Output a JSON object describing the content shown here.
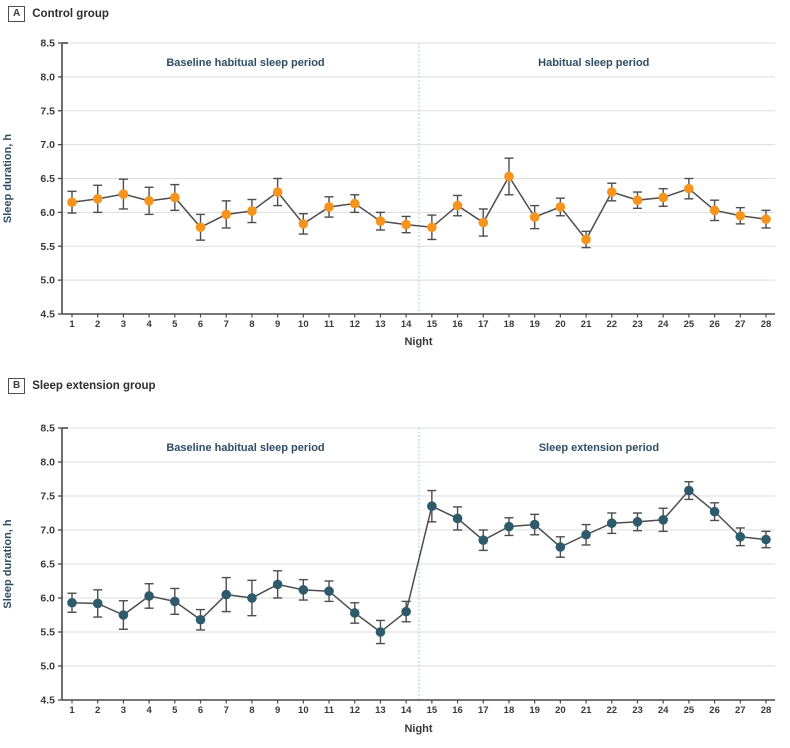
{
  "figure": {
    "xlabel": "Night",
    "ylabel": "Sleep duration, h"
  },
  "colors": {
    "axis": "#4a4a4a",
    "grid": "#dedede",
    "line": "#4d4d4d",
    "error_bar": "#4d4d4d",
    "tick_label": "#3a3a3a",
    "annotation": "#2e4e66",
    "divider": "#a9dcf0",
    "control_marker": "#f7941d",
    "extension_marker": "#2e5b6b"
  },
  "chart_data": [
    {
      "type": "line",
      "panel_label": "A",
      "title": "Control group",
      "annotation_left": "Baseline habitual sleep period",
      "annotation_right": "Habitual sleep period",
      "xlabel": "Night",
      "ylabel": "Sleep duration, h",
      "ylim": [
        4.5,
        8.5
      ],
      "ytick_step": 0.5,
      "grid": true,
      "divider_x": 14.5,
      "x": [
        1,
        2,
        3,
        4,
        5,
        6,
        7,
        8,
        9,
        10,
        11,
        12,
        13,
        14,
        15,
        16,
        17,
        18,
        19,
        20,
        21,
        22,
        23,
        24,
        25,
        26,
        27,
        28
      ],
      "series": [
        {
          "name": "Control group",
          "marker_color": "#f7941d",
          "values": [
            6.15,
            6.2,
            6.27,
            6.17,
            6.22,
            5.78,
            5.97,
            6.02,
            6.3,
            5.83,
            6.08,
            6.13,
            5.87,
            5.82,
            5.78,
            6.1,
            5.85,
            6.53,
            5.93,
            6.08,
            5.6,
            6.3,
            6.18,
            6.22,
            6.35,
            6.03,
            5.95,
            5.9
          ],
          "errors": [
            0.16,
            0.2,
            0.22,
            0.2,
            0.19,
            0.19,
            0.2,
            0.17,
            0.2,
            0.15,
            0.15,
            0.13,
            0.13,
            0.12,
            0.18,
            0.15,
            0.2,
            0.27,
            0.17,
            0.13,
            0.12,
            0.13,
            0.12,
            0.13,
            0.15,
            0.15,
            0.12,
            0.13
          ]
        }
      ]
    },
    {
      "type": "line",
      "panel_label": "B",
      "title": "Sleep extension group",
      "annotation_left": "Baseline habitual sleep period",
      "annotation_right": "Sleep extension period",
      "xlabel": "Night",
      "ylabel": "Sleep duration, h",
      "ylim": [
        4.5,
        8.5
      ],
      "ytick_step": 0.5,
      "grid": true,
      "divider_x": 14.5,
      "x": [
        1,
        2,
        3,
        4,
        5,
        6,
        7,
        8,
        9,
        10,
        11,
        12,
        13,
        14,
        15,
        16,
        17,
        18,
        19,
        20,
        21,
        22,
        23,
        24,
        25,
        26,
        27,
        28
      ],
      "series": [
        {
          "name": "Sleep extension group",
          "marker_color": "#2e5b6b",
          "values": [
            5.93,
            5.92,
            5.75,
            6.03,
            5.95,
            5.68,
            6.05,
            6.0,
            6.2,
            6.12,
            6.1,
            5.78,
            5.5,
            5.8,
            7.35,
            7.17,
            6.85,
            7.05,
            7.08,
            6.75,
            6.93,
            7.1,
            7.12,
            7.15,
            7.58,
            7.27,
            6.9,
            6.86
          ],
          "errors": [
            0.14,
            0.2,
            0.21,
            0.18,
            0.19,
            0.15,
            0.25,
            0.26,
            0.2,
            0.15,
            0.15,
            0.15,
            0.17,
            0.15,
            0.23,
            0.17,
            0.15,
            0.13,
            0.15,
            0.15,
            0.15,
            0.15,
            0.13,
            0.17,
            0.13,
            0.13,
            0.13,
            0.12
          ]
        }
      ]
    }
  ]
}
